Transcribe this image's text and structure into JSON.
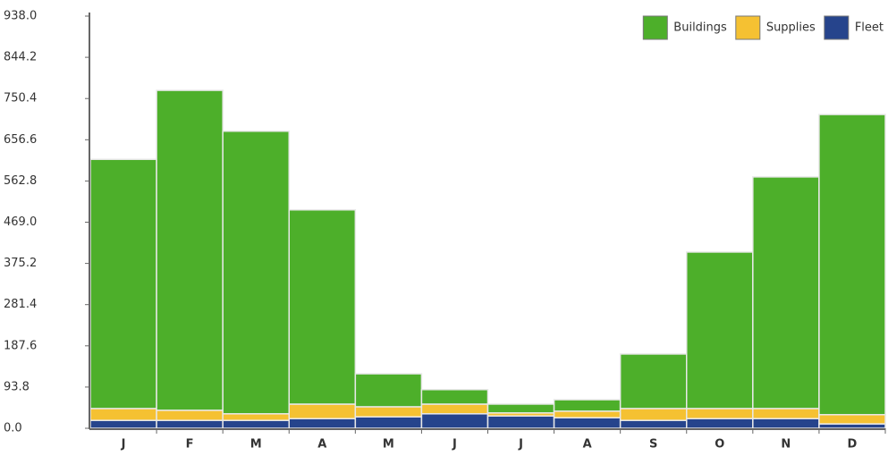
{
  "chart_data": {
    "type": "stacked_bar",
    "categories": [
      "J",
      "F",
      "M",
      "A",
      "M",
      "J",
      "J",
      "A",
      "S",
      "O",
      "N",
      "D"
    ],
    "series": [
      {
        "name": "Fleet",
        "color": "#26448c",
        "values": [
          18,
          18,
          18,
          22,
          26,
          33,
          28,
          24,
          18,
          22,
          22,
          10
        ]
      },
      {
        "name": "Supplies",
        "color": "#f5c132",
        "values": [
          27,
          23,
          15,
          33,
          23,
          22,
          7,
          15,
          27,
          23,
          23,
          21
        ]
      },
      {
        "name": "Buildings",
        "color": "#4daf2a",
        "values": [
          567,
          728,
          643,
          442,
          75,
          33,
          20,
          26,
          124,
          356,
          527,
          683
        ]
      }
    ],
    "legend_order": [
      "Buildings",
      "Supplies",
      "Fleet"
    ],
    "ylim": [
      0,
      938
    ],
    "yticks": [
      {
        "value": 0,
        "label": "0.0"
      },
      93.8,
      187.6,
      281.4,
      375.2,
      {
        "value": 469,
        "label": "469.0"
      },
      562.8,
      656.6,
      750.4,
      844.2,
      {
        "value": 938,
        "label": "938.0"
      }
    ],
    "grid": false,
    "legend": "top-right"
  }
}
